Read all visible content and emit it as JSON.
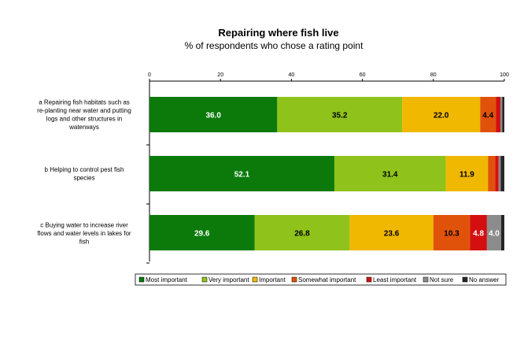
{
  "chart_data": {
    "type": "bar",
    "orientation": "horizontal",
    "stacked": true,
    "title": "Repairing where fish live",
    "subtitle": "% of respondents who chose a rating point",
    "xlim": [
      0,
      100
    ],
    "x_ticks": [
      0,
      20,
      40,
      60,
      80,
      100
    ],
    "x_tick_labels": [
      "0",
      "20",
      "40",
      "60",
      "80",
      "100"
    ],
    "grid": false,
    "legend_position": "bottom",
    "categories": [
      [
        "a Repairing fish habitats such as",
        "re-planting near water and putting",
        "logs and other structures in",
        "waterways"
      ],
      [
        "b Helping to control pest fish",
        "species"
      ],
      [
        "c Buying water to increase river",
        "flows and water levels in lakes for",
        "fish"
      ]
    ],
    "series": [
      {
        "name": "Most important",
        "color": "#0b7a0b",
        "label_color": "#ffffff",
        "values": [
          36.0,
          52.1,
          29.6
        ],
        "labels": [
          "36.0",
          "52.1",
          "29.6"
        ]
      },
      {
        "name": "Very important",
        "color": "#8fc21b",
        "label_color": "#000000",
        "values": [
          35.2,
          31.4,
          26.8
        ],
        "labels": [
          "35.2",
          "31.4",
          "26.8"
        ]
      },
      {
        "name": "Important",
        "color": "#f0b800",
        "label_color": "#000000",
        "values": [
          22.0,
          11.9,
          23.6
        ],
        "labels": [
          "22.0",
          "11.9",
          "23.6"
        ]
      },
      {
        "name": "Somewhat important",
        "color": "#e0520a",
        "label_color": "#000000",
        "values": [
          4.4,
          2.0,
          10.3
        ],
        "labels": [
          "4.4",
          "",
          "10.3"
        ]
      },
      {
        "name": "Least important",
        "color": "#d40f0f",
        "label_color": "#ffffff",
        "values": [
          1.3,
          1.0,
          4.8
        ],
        "labels": [
          "",
          "",
          "4.8"
        ]
      },
      {
        "name": "Not sure",
        "color": "#8c8c8c",
        "label_color": "#ffffff",
        "values": [
          0.5,
          0.6,
          4.0
        ],
        "labels": [
          "",
          "",
          "4.0"
        ]
      },
      {
        "name": "No answer",
        "color": "#262626",
        "label_color": "#ffffff",
        "values": [
          0.6,
          1.0,
          0.9
        ],
        "labels": [
          "",
          "",
          ""
        ]
      }
    ]
  }
}
